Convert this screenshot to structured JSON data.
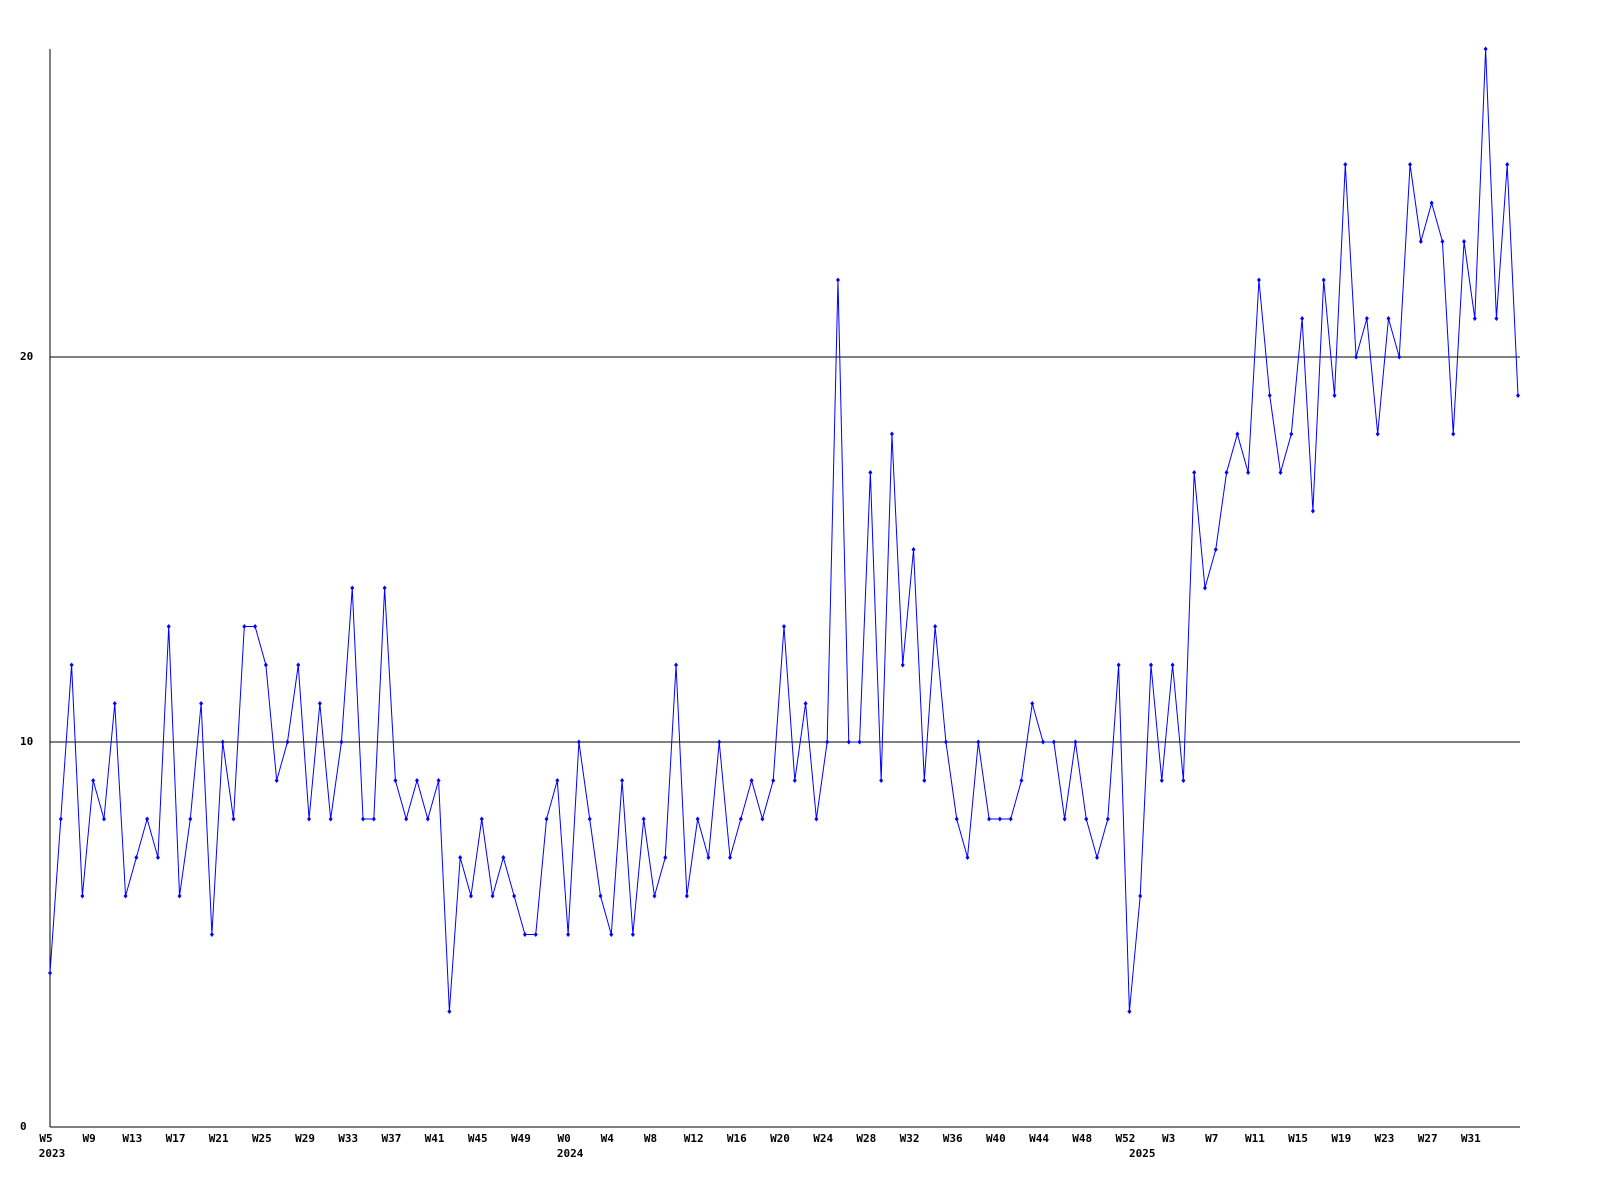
{
  "chart_data": {
    "type": "line",
    "color": "#0000ff",
    "values": [
      4,
      8,
      12,
      6,
      9,
      8,
      11,
      6,
      7,
      8,
      7,
      13,
      6,
      8,
      11,
      5,
      10,
      8,
      13,
      13,
      12,
      9,
      10,
      12,
      8,
      11,
      8,
      10,
      14,
      8,
      8,
      14,
      9,
      8,
      9,
      8,
      9,
      3,
      7,
      6,
      8,
      6,
      7,
      6,
      5,
      5,
      8,
      9,
      5,
      10,
      8,
      6,
      5,
      9,
      5,
      8,
      6,
      7,
      12,
      6,
      8,
      7,
      10,
      7,
      8,
      9,
      8,
      9,
      13,
      9,
      11,
      8,
      10,
      22,
      10,
      10,
      17,
      9,
      18,
      12,
      15,
      9,
      13,
      10,
      8,
      7,
      10,
      8,
      8,
      8,
      9,
      11,
      10,
      10,
      8,
      10,
      8,
      7,
      8,
      12,
      3,
      6,
      12,
      9,
      12,
      9,
      17,
      14,
      15,
      17,
      18,
      17,
      22,
      19,
      17,
      18,
      21,
      16,
      22,
      19,
      25,
      20,
      21,
      18,
      21,
      20,
      25,
      23,
      24,
      23,
      18,
      23,
      21,
      28,
      21,
      25,
      19
    ],
    "categories": [
      "W5",
      null,
      null,
      null,
      "W9",
      null,
      null,
      null,
      "W13",
      null,
      null,
      null,
      "W17",
      null,
      null,
      null,
      "W21",
      null,
      null,
      null,
      "W25",
      null,
      null,
      null,
      "W29",
      null,
      null,
      null,
      "W33",
      null,
      null,
      null,
      "W37",
      null,
      null,
      null,
      "W41",
      null,
      null,
      null,
      "W45",
      null,
      null,
      null,
      "W49",
      null,
      null,
      null,
      "W0",
      null,
      null,
      null,
      "W4",
      null,
      null,
      null,
      "W8",
      null,
      null,
      null,
      "W12",
      null,
      null,
      null,
      "W16",
      null,
      null,
      null,
      "W20",
      null,
      null,
      null,
      "W24",
      null,
      null,
      null,
      "W28",
      null,
      null,
      null,
      "W32",
      null,
      null,
      null,
      "W36",
      null,
      null,
      null,
      "W40",
      null,
      null,
      null,
      "W44",
      null,
      null,
      null,
      "W48",
      null,
      null,
      null,
      "W52",
      null,
      null,
      null,
      "W3",
      null,
      null,
      null,
      "W7",
      null,
      null,
      null,
      "W11",
      null,
      null,
      null,
      "W15",
      null,
      null,
      null,
      "W19",
      null,
      null,
      null,
      "W23",
      null,
      null,
      null,
      "W27",
      null,
      null,
      null,
      "W31",
      null,
      null,
      null,
      null
    ],
    "category_years": [
      "2023",
      null,
      null,
      null,
      null,
      null,
      null,
      null,
      null,
      null,
      null,
      null,
      null,
      null,
      null,
      null,
      null,
      null,
      null,
      null,
      null,
      null,
      null,
      null,
      null,
      null,
      null,
      null,
      null,
      null,
      null,
      null,
      null,
      null,
      null,
      null,
      null,
      null,
      null,
      null,
      null,
      null,
      null,
      null,
      null,
      null,
      null,
      null,
      "2024",
      null,
      null,
      null,
      null,
      null,
      null,
      null,
      null,
      null,
      null,
      null,
      null,
      null,
      null,
      null,
      null,
      null,
      null,
      null,
      null,
      null,
      null,
      null,
      null,
      null,
      null,
      null,
      null,
      null,
      null,
      null,
      null,
      null,
      null,
      null,
      null,
      null,
      null,
      null,
      null,
      null,
      null,
      null,
      null,
      null,
      null,
      null,
      null,
      null,
      null,
      null,
      null,
      "2025",
      null,
      null,
      null,
      null,
      null,
      null,
      null,
      null,
      null,
      null,
      null,
      null,
      null,
      null,
      null,
      null,
      null,
      null,
      null,
      null,
      null,
      null,
      null,
      null,
      null,
      null,
      null,
      null,
      null,
      null,
      null,
      null,
      null,
      null,
      null
    ],
    "ylim": [
      0,
      28
    ],
    "yticks": [
      0,
      10,
      20
    ],
    "grid": true
  }
}
